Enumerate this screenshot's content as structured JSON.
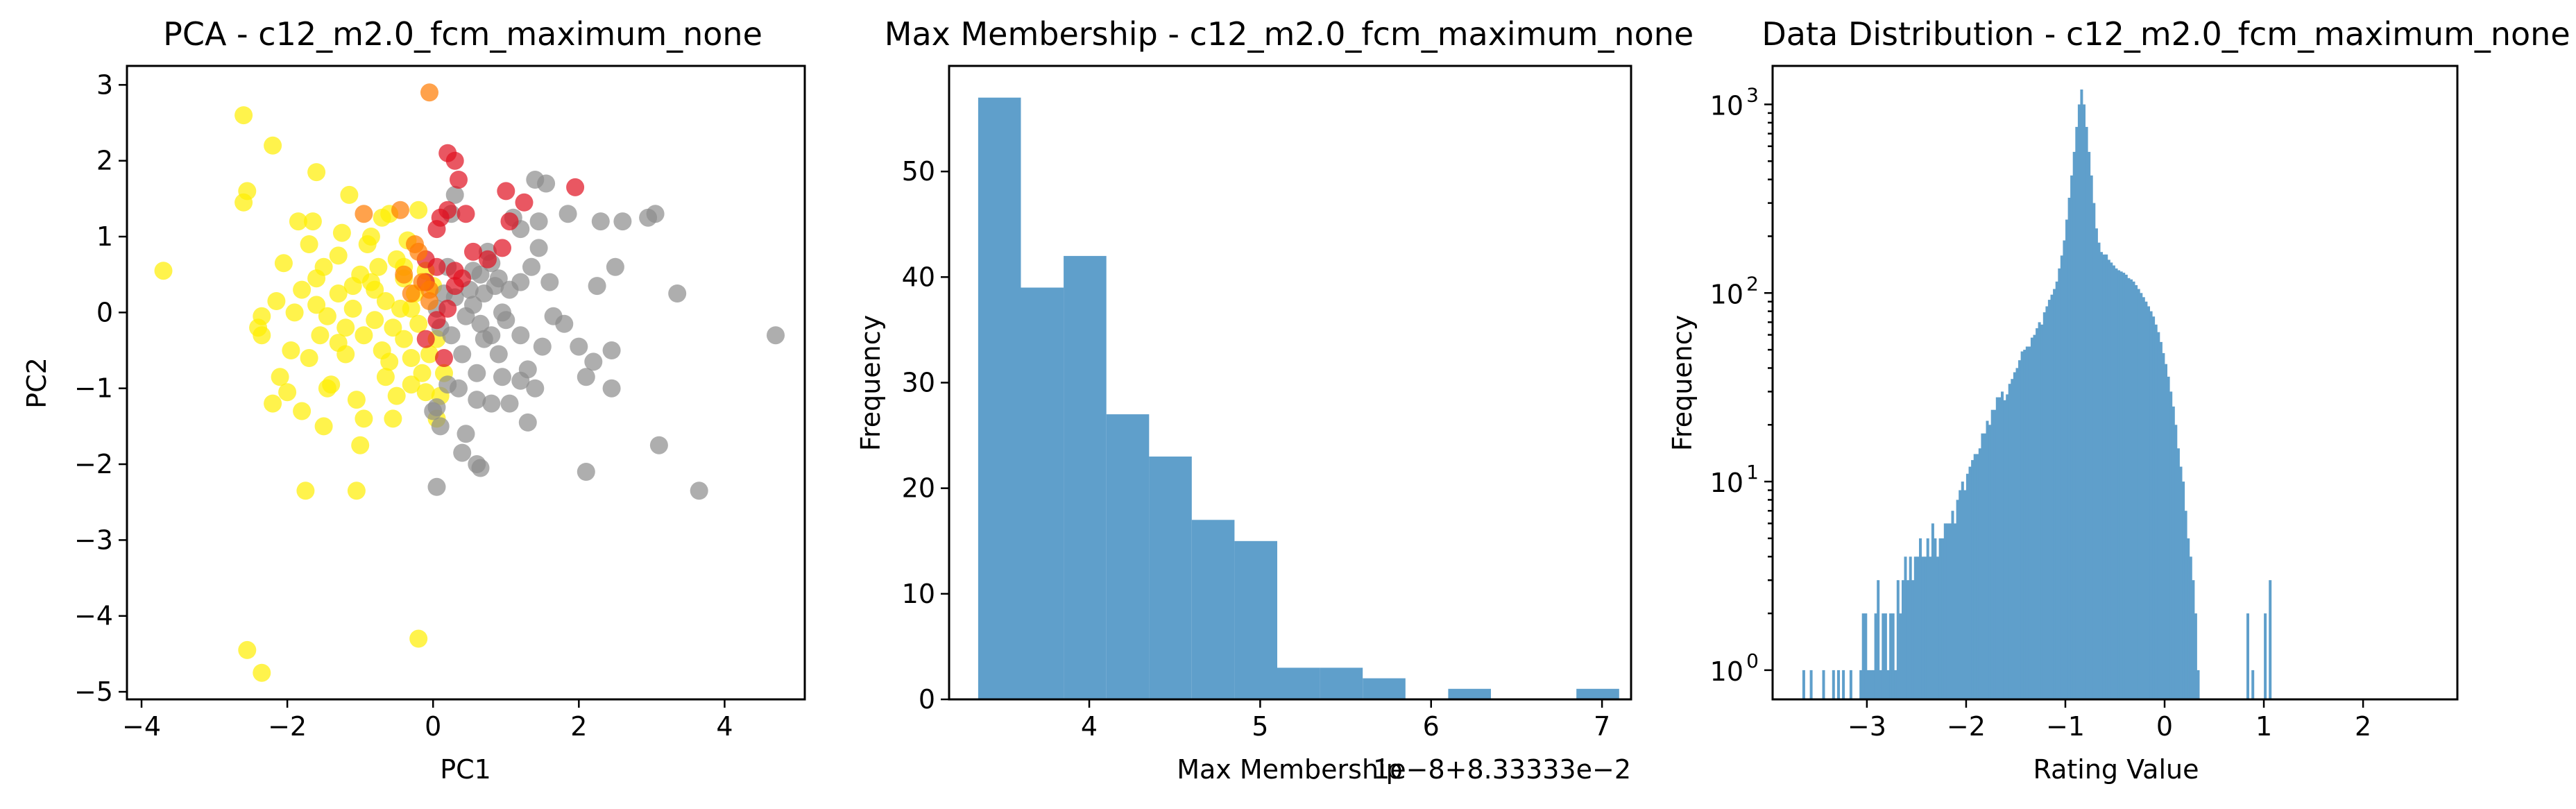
{
  "chart_data": [
    {
      "type": "scatter",
      "title": "PCA - c12_m2.0_fcm_maximum_none",
      "xlabel": "PC1",
      "ylabel": "PC2",
      "xlim": [
        -4.2,
        5.1
      ],
      "ylim": [
        -5.1,
        3.25
      ],
      "xticks": [
        -4,
        -2,
        0,
        2,
        4
      ],
      "yticks": [
        -5,
        -4,
        -3,
        -2,
        -1,
        0,
        1,
        2,
        3
      ],
      "xtick_labels": [
        "−4",
        "−2",
        "0",
        "2",
        "4"
      ],
      "ytick_labels": [
        "−5",
        "−4",
        "−3",
        "−2",
        "−1",
        "0",
        "1",
        "2",
        "3"
      ],
      "grid": false,
      "colors": {
        "yellow": "#ffee00",
        "gray": "#8c8c8c",
        "red": "#e01020",
        "orange": "#ff7a00"
      },
      "series": [
        {
          "color_key": "yellow",
          "points": [
            [
              -3.7,
              0.55
            ],
            [
              -2.6,
              2.6
            ],
            [
              -2.55,
              1.6
            ],
            [
              -2.6,
              1.45
            ],
            [
              -2.2,
              2.2
            ],
            [
              -2.35,
              -0.05
            ],
            [
              -2.4,
              -0.2
            ],
            [
              -2.35,
              -0.3
            ],
            [
              -2.05,
              0.65
            ],
            [
              -2.1,
              -0.85
            ],
            [
              -2.0,
              -1.05
            ],
            [
              -2.2,
              -1.2
            ],
            [
              -1.95,
              -0.5
            ],
            [
              -1.85,
              1.2
            ],
            [
              -1.8,
              0.3
            ],
            [
              -1.8,
              -1.3
            ],
            [
              -1.7,
              0.9
            ],
            [
              -1.6,
              0.1
            ],
            [
              -1.65,
              1.2
            ],
            [
              -1.6,
              0.45
            ],
            [
              -1.6,
              1.85
            ],
            [
              -1.55,
              -0.3
            ],
            [
              -1.5,
              -1.5
            ],
            [
              -1.4,
              -0.95
            ],
            [
              -1.3,
              0.25
            ],
            [
              -1.3,
              0.75
            ],
            [
              -1.25,
              1.05
            ],
            [
              -1.3,
              -0.4
            ],
            [
              -1.2,
              -0.55
            ],
            [
              -1.15,
              1.55
            ],
            [
              -1.1,
              0.05
            ],
            [
              -1.05,
              -1.15
            ],
            [
              -1.0,
              -1.75
            ],
            [
              -0.95,
              -0.3
            ],
            [
              -0.9,
              0.9
            ],
            [
              -0.85,
              1.0
            ],
            [
              -0.85,
              0.4
            ],
            [
              -0.8,
              -0.1
            ],
            [
              -0.75,
              0.6
            ],
            [
              -0.7,
              -0.5
            ],
            [
              -0.65,
              -0.85
            ],
            [
              -0.6,
              1.3
            ],
            [
              -0.55,
              -0.2
            ],
            [
              -0.5,
              0.7
            ],
            [
              -0.5,
              -1.1
            ],
            [
              -0.45,
              0.05
            ],
            [
              -0.4,
              0.45
            ],
            [
              -0.4,
              -0.35
            ],
            [
              -0.35,
              0.95
            ],
            [
              -0.3,
              -0.6
            ],
            [
              -0.25,
              0.25
            ],
            [
              -0.2,
              1.35
            ],
            [
              -0.2,
              -0.15
            ],
            [
              -0.15,
              -0.8
            ],
            [
              -0.1,
              -1.05
            ],
            [
              -0.05,
              -0.55
            ],
            [
              0.0,
              0.35
            ],
            [
              0.05,
              -0.35
            ],
            [
              0.05,
              -1.4
            ],
            [
              0.1,
              -1.1
            ],
            [
              0.15,
              -0.8
            ],
            [
              -1.05,
              -2.35
            ],
            [
              -1.75,
              -2.35
            ],
            [
              -2.55,
              -4.45
            ],
            [
              -2.35,
              -4.75
            ],
            [
              -0.2,
              -4.3
            ],
            [
              -1.5,
              0.6
            ],
            [
              -1.0,
              0.5
            ],
            [
              -0.65,
              0.15
            ],
            [
              -1.2,
              -0.2
            ],
            [
              -0.8,
              0.3
            ],
            [
              -1.1,
              0.35
            ],
            [
              -0.7,
              1.25
            ],
            [
              -0.95,
              -1.4
            ],
            [
              -0.55,
              -1.4
            ],
            [
              -0.4,
              0.6
            ],
            [
              -0.3,
              -0.95
            ],
            [
              -0.3,
              0.05
            ],
            [
              -1.45,
              -0.05
            ],
            [
              -2.15,
              0.15
            ],
            [
              -1.9,
              0.0
            ],
            [
              -1.7,
              -0.6
            ],
            [
              -1.45,
              -1.0
            ],
            [
              -0.6,
              -0.65
            ],
            [
              -0.1,
              0.55
            ]
          ]
        },
        {
          "color_key": "gray",
          "points": [
            [
              0.05,
              -2.3
            ],
            [
              0.6,
              -2.0
            ],
            [
              0.65,
              -2.05
            ],
            [
              0.4,
              -1.85
            ],
            [
              0.1,
              -1.5
            ],
            [
              0.05,
              -1.25
            ],
            [
              0.6,
              -1.15
            ],
            [
              0.8,
              -1.2
            ],
            [
              1.05,
              -1.2
            ],
            [
              1.3,
              -1.45
            ],
            [
              1.4,
              -1.0
            ],
            [
              1.3,
              -0.75
            ],
            [
              1.5,
              -0.45
            ],
            [
              1.2,
              -0.3
            ],
            [
              1.8,
              -0.15
            ],
            [
              2.1,
              -0.85
            ],
            [
              2.2,
              -0.65
            ],
            [
              2.45,
              -0.5
            ],
            [
              2.45,
              -1.0
            ],
            [
              2.1,
              -2.1
            ],
            [
              3.1,
              -1.75
            ],
            [
              3.65,
              -2.35
            ],
            [
              4.7,
              -0.3
            ],
            [
              3.35,
              0.25
            ],
            [
              2.25,
              0.35
            ],
            [
              2.5,
              0.6
            ],
            [
              2.3,
              1.2
            ],
            [
              2.6,
              1.2
            ],
            [
              2.95,
              1.25
            ],
            [
              3.05,
              1.3
            ],
            [
              1.85,
              1.3
            ],
            [
              1.6,
              0.4
            ],
            [
              1.45,
              0.85
            ],
            [
              1.35,
              0.6
            ],
            [
              1.2,
              1.1
            ],
            [
              1.2,
              0.4
            ],
            [
              1.05,
              0.3
            ],
            [
              1.0,
              -0.1
            ],
            [
              0.95,
              0.0
            ],
            [
              0.9,
              -0.55
            ],
            [
              0.8,
              -0.3
            ],
            [
              0.65,
              -0.15
            ],
            [
              0.55,
              0.1
            ],
            [
              0.45,
              -0.05
            ],
            [
              0.4,
              -0.55
            ],
            [
              0.3,
              0.2
            ],
            [
              0.25,
              -0.3
            ],
            [
              0.2,
              0.6
            ],
            [
              0.15,
              0.25
            ],
            [
              0.1,
              -0.2
            ],
            [
              0.05,
              0.05
            ],
            [
              0.3,
              1.55
            ],
            [
              0.25,
              1.3
            ],
            [
              0.8,
              0.65
            ],
            [
              0.75,
              0.8
            ],
            [
              0.55,
              0.55
            ],
            [
              0.65,
              0.5
            ],
            [
              0.85,
              0.35
            ],
            [
              1.45,
              1.2
            ],
            [
              1.4,
              1.75
            ],
            [
              1.55,
              1.7
            ],
            [
              1.1,
              1.25
            ],
            [
              0.95,
              -0.85
            ],
            [
              0.6,
              -0.8
            ],
            [
              0.35,
              -1.0
            ],
            [
              0.2,
              -0.95
            ],
            [
              0.5,
              0.3
            ],
            [
              0.7,
              0.25
            ],
            [
              0.9,
              0.45
            ],
            [
              0.7,
              -0.35
            ],
            [
              1.2,
              -0.9
            ],
            [
              0.45,
              -1.6
            ],
            [
              0.0,
              -1.3
            ],
            [
              2.0,
              -0.45
            ],
            [
              1.65,
              -0.05
            ]
          ]
        },
        {
          "color_key": "red",
          "points": [
            [
              0.2,
              2.1
            ],
            [
              0.3,
              2.0
            ],
            [
              0.35,
              1.75
            ],
            [
              0.45,
              1.3
            ],
            [
              0.2,
              1.35
            ],
            [
              0.1,
              1.25
            ],
            [
              0.05,
              1.1
            ],
            [
              1.05,
              1.2
            ],
            [
              1.0,
              1.6
            ],
            [
              1.25,
              1.45
            ],
            [
              1.95,
              1.65
            ],
            [
              0.95,
              0.85
            ],
            [
              0.75,
              0.7
            ],
            [
              0.3,
              0.55
            ],
            [
              -0.1,
              0.7
            ],
            [
              0.05,
              0.6
            ],
            [
              0.3,
              0.35
            ],
            [
              -0.1,
              0.4
            ],
            [
              0.2,
              0.05
            ],
            [
              0.05,
              -0.1
            ],
            [
              0.15,
              -0.6
            ],
            [
              -0.1,
              -0.35
            ],
            [
              0.55,
              0.8
            ],
            [
              0.4,
              0.45
            ]
          ]
        },
        {
          "color_key": "orange",
          "points": [
            [
              -0.05,
              2.9
            ],
            [
              -0.95,
              1.3
            ],
            [
              -0.45,
              1.35
            ],
            [
              -0.25,
              0.9
            ],
            [
              -0.2,
              0.8
            ],
            [
              -0.4,
              0.5
            ],
            [
              -0.15,
              0.4
            ],
            [
              -0.05,
              0.3
            ],
            [
              -0.3,
              0.25
            ],
            [
              -0.05,
              0.15
            ]
          ]
        }
      ]
    },
    {
      "type": "bar",
      "title": "Max Membership - c12_m2.0_fcm_maximum_none",
      "xlabel": "Max Membership",
      "ylabel": "Frequency",
      "offset_text": "1e−8+8.33333e−2",
      "xlim": [
        3.18,
        7.17
      ],
      "ylim": [
        0,
        60
      ],
      "xticks": [
        4,
        5,
        6,
        7
      ],
      "yticks": [
        0,
        10,
        20,
        30,
        40,
        50
      ],
      "bin_edges": [
        3.35,
        3.6,
        3.85,
        4.1,
        4.35,
        4.6,
        4.85,
        5.1,
        5.35,
        5.6,
        5.85,
        6.1,
        6.35,
        6.6,
        6.85,
        7.1
      ],
      "values": [
        57,
        39,
        42,
        27,
        23,
        17,
        15,
        3,
        3,
        2,
        0,
        1,
        0,
        0,
        1
      ],
      "bar_color": "#5f9fcb",
      "grid": false
    },
    {
      "type": "bar",
      "title": "Data Distribution - c12_m2.0_fcm_maximum_none",
      "xlabel": "Rating Value",
      "ylabel": "Frequency",
      "yscale": "log",
      "xlim": [
        -3.95,
        2.95
      ],
      "ylim": [
        0.7,
        1600
      ],
      "xticks": [
        -3,
        -2,
        -1,
        0,
        1,
        2
      ],
      "xtick_labels": [
        "−3",
        "−2",
        "−1",
        "0",
        "1",
        "2"
      ],
      "yticks": [
        1,
        10,
        100,
        1000
      ],
      "ytick_labels": [
        "10",
        "10",
        "10",
        "10"
      ],
      "ytick_exponents": [
        "0",
        "1",
        "2",
        "3"
      ],
      "bin_start": -3.65,
      "bin_width": 0.025,
      "values": [
        1,
        0,
        0,
        1,
        0,
        0,
        0,
        0,
        1,
        0,
        0,
        0,
        1,
        0,
        1,
        0,
        1,
        0,
        0,
        1,
        0,
        0,
        0,
        1,
        2,
        2,
        1,
        1,
        1,
        2,
        3,
        1,
        2,
        2,
        1,
        2,
        2,
        1,
        3,
        2,
        3,
        4,
        3,
        4,
        3,
        4,
        4,
        5,
        4,
        4,
        5,
        4,
        6,
        5,
        4,
        5,
        5,
        6,
        6,
        6,
        7,
        6,
        8,
        9,
        10,
        9,
        11,
        12,
        13,
        14,
        14,
        15,
        18,
        18,
        21,
        20,
        24,
        24,
        28,
        28,
        30,
        27,
        29,
        33,
        35,
        38,
        40,
        44,
        49,
        50,
        52,
        52,
        58,
        60,
        65,
        70,
        68,
        79,
        85,
        92,
        98,
        105,
        115,
        135,
        158,
        190,
        245,
        320,
        420,
        560,
        760,
        1000,
        1200,
        1000,
        760,
        560,
        420,
        300,
        220,
        185,
        165,
        160,
        160,
        150,
        145,
        140,
        135,
        132,
        130,
        128,
        125,
        120,
        118,
        115,
        110,
        105,
        100,
        95,
        90,
        85,
        80,
        75,
        68,
        62,
        55,
        48,
        42,
        36,
        30,
        25,
        20,
        15,
        12,
        10,
        7,
        5,
        4,
        3,
        2,
        1,
        0,
        0,
        0,
        0,
        0,
        0,
        0,
        0,
        0,
        0,
        0,
        0,
        0,
        0,
        0,
        0,
        0,
        0,
        0,
        2,
        0,
        1,
        0,
        0,
        0,
        0,
        2,
        0,
        3
      ],
      "bar_color": "#5f9fcb",
      "grid": false
    }
  ]
}
